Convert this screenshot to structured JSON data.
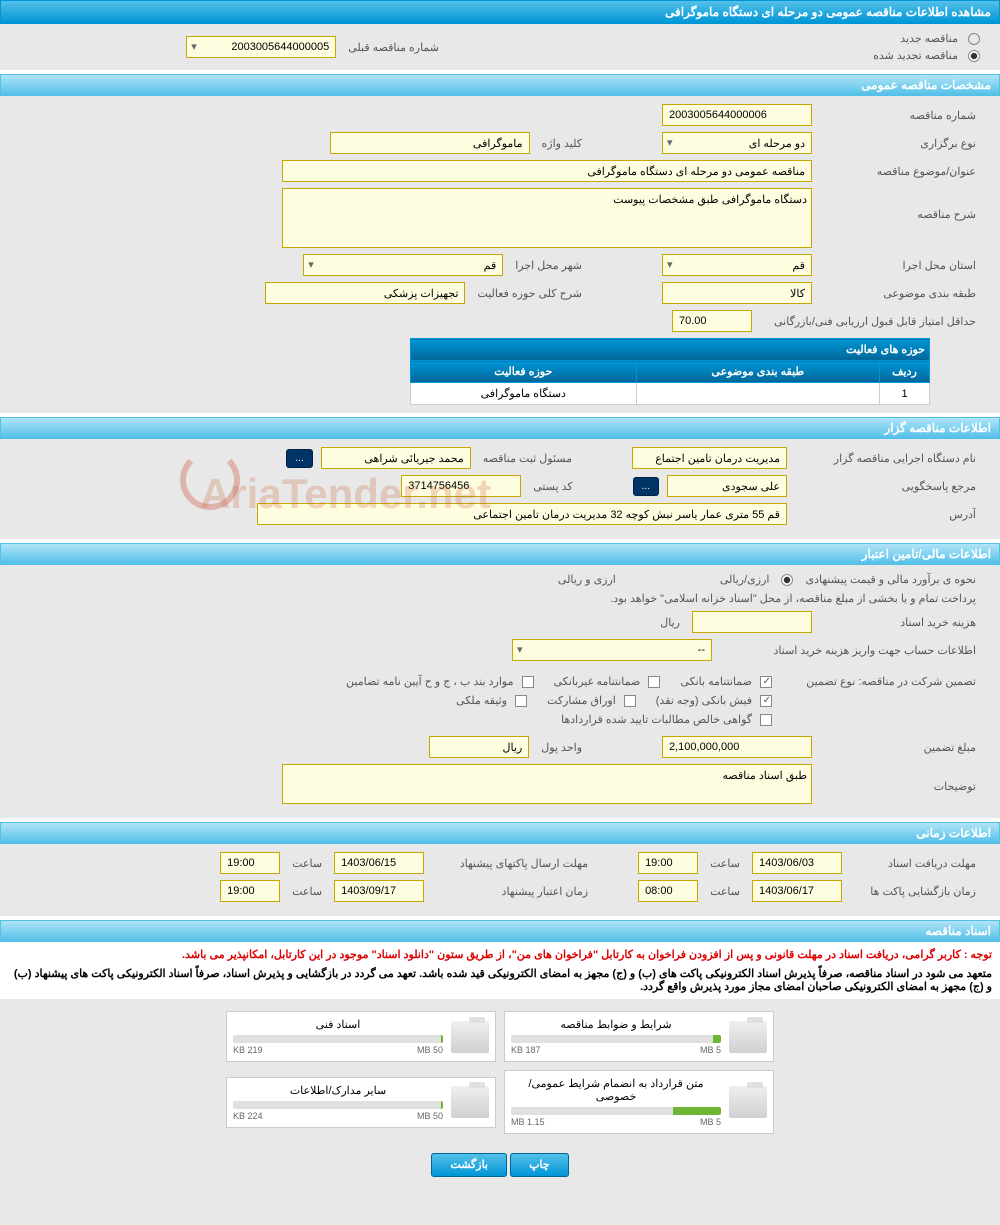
{
  "header": {
    "title": "مشاهده اطلاعات مناقصه عمومی دو مرحله ای دستگاه ماموگرافی"
  },
  "top": {
    "radio_new": "مناقصه جدید",
    "radio_renewed": "مناقصه تجدید شده",
    "prev_label": "شماره مناقصه قبلی",
    "prev_value": "2003005644000005"
  },
  "sections": {
    "general": "مشخصات مناقصه عمومی",
    "organizer": "اطلاعات مناقصه گزار",
    "financial": "اطلاعات مالی/تامین اعتبار",
    "timing": "اطلاعات زمانی",
    "documents": "اسناد مناقصه"
  },
  "general": {
    "number_label": "شماره مناقصه",
    "number": "2003005644000006",
    "type_label": "نوع برگزاری",
    "type": "دو مرحله ای",
    "keyword_label": "کلید واژه",
    "keyword": "ماموگرافی",
    "title_label": "عنوان/موضوع مناقصه",
    "title": "مناقصه عمومی دو مرحله ای  دستگاه ماموگرافی",
    "desc_label": "شرح مناقصه",
    "desc": "دستگاه ماموگرافی طبق مشخصات پیوست",
    "province_label": "استان محل اجرا",
    "province": "قم",
    "city_label": "شهر محل اجرا",
    "city": "قم",
    "category_label": "طبقه بندی موضوعی",
    "category": "کالا",
    "activity_desc_label": "شرح کلی حوزه فعالیت",
    "activity_desc": "تجهیزات پزشکی",
    "min_score_label": "حداقل امتیاز قابل قبول ارزیابی فنی/بازرگانی",
    "min_score": "70.00",
    "table_header": "حوزه های فعالیت",
    "table_cols": {
      "row": "ردیف",
      "category": "طبقه بندی موضوعی",
      "activity": "حوزه فعالیت"
    },
    "table_row": {
      "num": "1",
      "category": "",
      "activity": "دستگاه ماموگرافی"
    }
  },
  "organizer": {
    "exec_label": "نام دستگاه اجرایی مناقصه گزار",
    "exec": "مدیریت درمان تامین اجتماع",
    "reg_label": "مسئول ثبت مناقصه",
    "reg": "محمد جیریائی شراهی",
    "responder_label": "مرجع پاسخگویی",
    "responder": "علی سجودی",
    "postal_label": "کد پستی",
    "postal": "3714756456",
    "address_label": "آدرس",
    "address": "قم 55 متری عمار یاسر نبش کوچه 32 مدیریت درمان تامین اجتماعی"
  },
  "financial": {
    "estimate_label": "نحوه ی برآورد مالی و قیمت پیشنهادی",
    "currency_radio": "ارزی/ریالی",
    "treasury_note": "پرداخت تمام و یا بخشی از مبلغ مناقصه، از محل \"اسناد خزانه اسلامی\" خواهد بود.",
    "doc_fee_label": "هزینه خرید اسناد",
    "rial": "ریال",
    "account_label": "اطلاعات حساب جهت واریز هزینه خرید اسناد",
    "account_value": "--",
    "guarantee_label": "تضمین شرکت در مناقصه:   نوع تضمین",
    "cb_bank": "ضمانتنامه بانکی",
    "cb_nonbank": "ضمانتنامه غیربانکی",
    "cb_bond": "موارد بند ب ، ج و ح آیین نامه تضامین",
    "cb_cash": "فیش بانکی (وجه نقد)",
    "cb_securities": "اوراق مشارکت",
    "cb_property": "وثیقه ملکی",
    "cb_receivables": "گواهی خالص مطالبات تایید شده قراردادها",
    "amount_label": "مبلغ تضمین",
    "amount": "2,100,000,000",
    "unit_label": "واحد پول",
    "unit": "ریال",
    "notes_label": "توضیحات",
    "notes": "طبق اسناد مناقصه"
  },
  "timing": {
    "receive_label": "مهلت دریافت اسناد",
    "receive_date": "1403/06/03",
    "receive_time_label": "ساعت",
    "receive_time": "19:00",
    "submit_label": "مهلت ارسال پاکتهای پیشنهاد",
    "submit_date": "1403/06/15",
    "submit_time": "19:00",
    "open_label": "زمان بازگشایی پاکت ها",
    "open_date": "1403/06/17",
    "open_time": "08:00",
    "valid_label": "زمان اعتبار پیشنهاد",
    "valid_date": "1403/09/17",
    "valid_time": "19:00"
  },
  "docs": {
    "warning": "توجه : کاربر گرامی، دریافت اسناد در مهلت قانونی و پس از افزودن فراخوان به کارتابل \"فراخوان های من\"، از طریق ستون \"دانلود اسناد\" موجود در این کارتابل، امکانپذیر می باشد.",
    "info1": "متعهد می شود در اسناد مناقصه، صرفاً پذیرش اسناد الکترونیکی پاکت های (ب) و (ج) مجهز به امضای الکترونیکی قید شده باشد. تعهد می گردد در بازگشایی و پذیرش اسناد، صرفاً اسناد الکترونیکی پاکت های پیشنهاد (ب) و (ج) مجهز به امضای الکترونیکی صاحبان امضای مجاز مورد پذیرش واقع گردد.",
    "files": [
      {
        "name": "شرایط و ضوابط مناقصه",
        "used": "187 KB",
        "total": "5 MB",
        "pct": 4
      },
      {
        "name": "اسناد فنی",
        "used": "219 KB",
        "total": "50 MB",
        "pct": 1
      },
      {
        "name": "متن قرارداد به انضمام شرایط عمومی/خصوصی",
        "used": "1.15 MB",
        "total": "5 MB",
        "pct": 23
      },
      {
        "name": "سایر مدارک/اطلاعات",
        "used": "224 KB",
        "total": "50 MB",
        "pct": 1
      }
    ]
  },
  "footer": {
    "print": "چاپ",
    "back": "بازگشت"
  },
  "watermark": "AriaTender.net",
  "colors": {
    "header_gradient": [
      "#54c0e8",
      "#0096d6"
    ],
    "field_bg": "#fffde0",
    "field_border": "#c5a900",
    "progress": "#6fb536"
  }
}
